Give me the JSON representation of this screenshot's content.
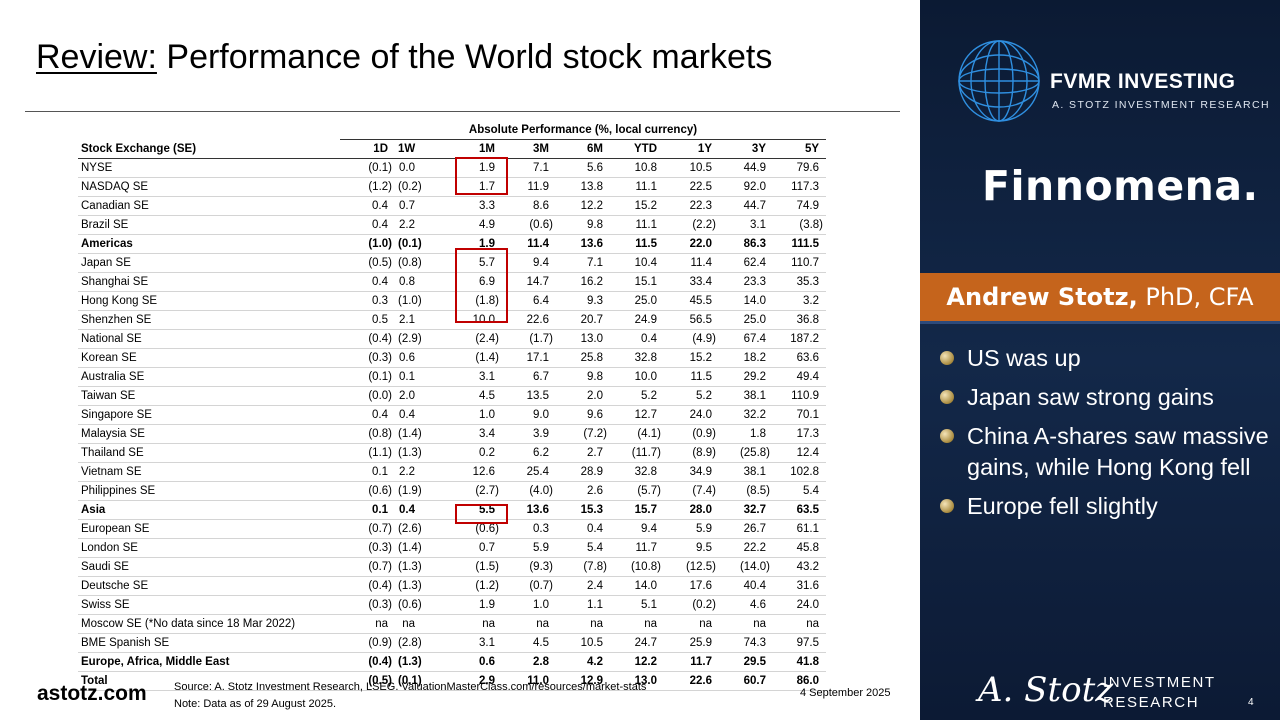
{
  "header": {
    "title_prefix": "Review:",
    "title": "Performance of the World stock markets"
  },
  "table": {
    "group_header": "Absolute Performance (%, local currency)",
    "columns": [
      "Stock Exchange (SE)",
      "1D",
      "1W",
      "1M",
      "3M",
      "6M",
      "YTD",
      "1Y",
      "3Y",
      "5Y"
    ],
    "rows": [
      {
        "label": "NYSE",
        "values": [
          "(0.1)",
          "0.0",
          "1.9",
          "7.1",
          "5.6",
          "10.8",
          "10.5",
          "44.9",
          "79.6"
        ]
      },
      {
        "label": "NASDAQ SE",
        "values": [
          "(1.2)",
          "(0.2)",
          "1.7",
          "11.9",
          "13.8",
          "11.1",
          "22.5",
          "92.0",
          "117.3"
        ]
      },
      {
        "label": "Canadian SE",
        "values": [
          "0.4",
          "0.7",
          "3.3",
          "8.6",
          "12.2",
          "15.2",
          "22.3",
          "44.7",
          "74.9"
        ]
      },
      {
        "label": "Brazil SE",
        "values": [
          "0.4",
          "2.2",
          "4.9",
          "(0.6)",
          "9.8",
          "11.1",
          "(2.2)",
          "3.1",
          "(3.8)"
        ]
      },
      {
        "label": "Americas",
        "bold": true,
        "values": [
          "(1.0)",
          "(0.1)",
          "1.9",
          "11.4",
          "13.6",
          "11.5",
          "22.0",
          "86.3",
          "111.5"
        ]
      },
      {
        "label": "Japan SE",
        "values": [
          "(0.5)",
          "(0.8)",
          "5.7",
          "9.4",
          "7.1",
          "10.4",
          "11.4",
          "62.4",
          "110.7"
        ]
      },
      {
        "label": "Shanghai SE",
        "values": [
          "0.4",
          "0.8",
          "6.9",
          "14.7",
          "16.2",
          "15.1",
          "33.4",
          "23.3",
          "35.3"
        ]
      },
      {
        "label": "Hong Kong SE",
        "values": [
          "0.3",
          "(1.0)",
          "(1.8)",
          "6.4",
          "9.3",
          "25.0",
          "45.5",
          "14.0",
          "3.2"
        ]
      },
      {
        "label": "Shenzhen SE",
        "values": [
          "0.5",
          "2.1",
          "10.0",
          "22.6",
          "20.7",
          "24.9",
          "56.5",
          "25.0",
          "36.8"
        ]
      },
      {
        "label": "National SE",
        "values": [
          "(0.4)",
          "(2.9)",
          "(2.4)",
          "(1.7)",
          "13.0",
          "0.4",
          "(4.9)",
          "67.4",
          "187.2"
        ]
      },
      {
        "label": "Korean SE",
        "values": [
          "(0.3)",
          "0.6",
          "(1.4)",
          "17.1",
          "25.8",
          "32.8",
          "15.2",
          "18.2",
          "63.6"
        ]
      },
      {
        "label": "Australia SE",
        "values": [
          "(0.1)",
          "0.1",
          "3.1",
          "6.7",
          "9.8",
          "10.0",
          "11.5",
          "29.2",
          "49.4"
        ]
      },
      {
        "label": "Taiwan SE",
        "values": [
          "(0.0)",
          "2.0",
          "4.5",
          "13.5",
          "2.0",
          "5.2",
          "5.2",
          "38.1",
          "110.9"
        ]
      },
      {
        "label": "Singapore SE",
        "values": [
          "0.4",
          "0.4",
          "1.0",
          "9.0",
          "9.6",
          "12.7",
          "24.0",
          "32.2",
          "70.1"
        ]
      },
      {
        "label": "Malaysia SE",
        "values": [
          "(0.8)",
          "(1.4)",
          "3.4",
          "3.9",
          "(7.2)",
          "(4.1)",
          "(0.9)",
          "1.8",
          "17.3"
        ]
      },
      {
        "label": "Thailand SE",
        "values": [
          "(1.1)",
          "(1.3)",
          "0.2",
          "6.2",
          "2.7",
          "(11.7)",
          "(8.9)",
          "(25.8)",
          "12.4"
        ]
      },
      {
        "label": "Vietnam SE",
        "values": [
          "0.1",
          "2.2",
          "12.6",
          "25.4",
          "28.9",
          "32.8",
          "34.9",
          "38.1",
          "102.8"
        ]
      },
      {
        "label": "Philippines SE",
        "values": [
          "(0.6)",
          "(1.9)",
          "(2.7)",
          "(4.0)",
          "2.6",
          "(5.7)",
          "(7.4)",
          "(8.5)",
          "5.4"
        ]
      },
      {
        "label": "Asia",
        "bold": true,
        "values": [
          "0.1",
          "0.4",
          "5.5",
          "13.6",
          "15.3",
          "15.7",
          "28.0",
          "32.7",
          "63.5"
        ]
      },
      {
        "label": "European SE",
        "values": [
          "(0.7)",
          "(2.6)",
          "(0.6)",
          "0.3",
          "0.4",
          "9.4",
          "5.9",
          "26.7",
          "61.1"
        ]
      },
      {
        "label": "London SE",
        "values": [
          "(0.3)",
          "(1.4)",
          "0.7",
          "5.9",
          "5.4",
          "11.7",
          "9.5",
          "22.2",
          "45.8"
        ]
      },
      {
        "label": "Saudi SE",
        "values": [
          "(0.7)",
          "(1.3)",
          "(1.5)",
          "(9.3)",
          "(7.8)",
          "(10.8)",
          "(12.5)",
          "(14.0)",
          "43.2"
        ]
      },
      {
        "label": "Deutsche SE",
        "values": [
          "(0.4)",
          "(1.3)",
          "(1.2)",
          "(0.7)",
          "2.4",
          "14.0",
          "17.6",
          "40.4",
          "31.6"
        ]
      },
      {
        "label": "Swiss SE",
        "values": [
          "(0.3)",
          "(0.6)",
          "1.9",
          "1.0",
          "1.1",
          "5.1",
          "(0.2)",
          "4.6",
          "24.0"
        ]
      },
      {
        "label": "Moscow SE (*No data since 18 Mar 2022)",
        "values": [
          "na",
          "na",
          "na",
          "na",
          "na",
          "na",
          "na",
          "na",
          "na"
        ]
      },
      {
        "label": "BME Spanish SE",
        "values": [
          "(0.9)",
          "(2.8)",
          "3.1",
          "4.5",
          "10.5",
          "24.7",
          "25.9",
          "74.3",
          "97.5"
        ]
      },
      {
        "label": "Europe, Africa, Middle East",
        "bold": true,
        "values": [
          "(0.4)",
          "(1.3)",
          "0.6",
          "2.8",
          "4.2",
          "12.2",
          "11.7",
          "29.5",
          "41.8"
        ]
      },
      {
        "label": "Total",
        "bold": true,
        "values": [
          "(0.5)",
          "(0.1)",
          "2.9",
          "11.0",
          "12.9",
          "13.0",
          "22.6",
          "60.7",
          "86.0"
        ]
      }
    ]
  },
  "sidebar": {
    "brand": "FVMR INVESTING",
    "brand_sub": "A. STOTZ INVESTMENT RESEARCH",
    "partner": "Finnomena.",
    "presenter_name": "Andrew Stotz,",
    "presenter_credentials": "PhD, CFA",
    "bullets": [
      "US was up",
      "Japan saw strong gains",
      "China A-shares saw massive gains, while Hong Kong fell",
      "Europe fell slightly"
    ],
    "signature": "A. Stotz",
    "research_logo": [
      "INVESTMENT",
      "RESEARCH"
    ]
  },
  "footer": {
    "website": "astotz.com",
    "source": "Source: A. Stotz Investment Research, LSEG. ValuationMasterClass.com/resources/market-stats",
    "note": "Note: Data as of 29 August 2025.",
    "date": "4 September 2025",
    "page": "4"
  }
}
